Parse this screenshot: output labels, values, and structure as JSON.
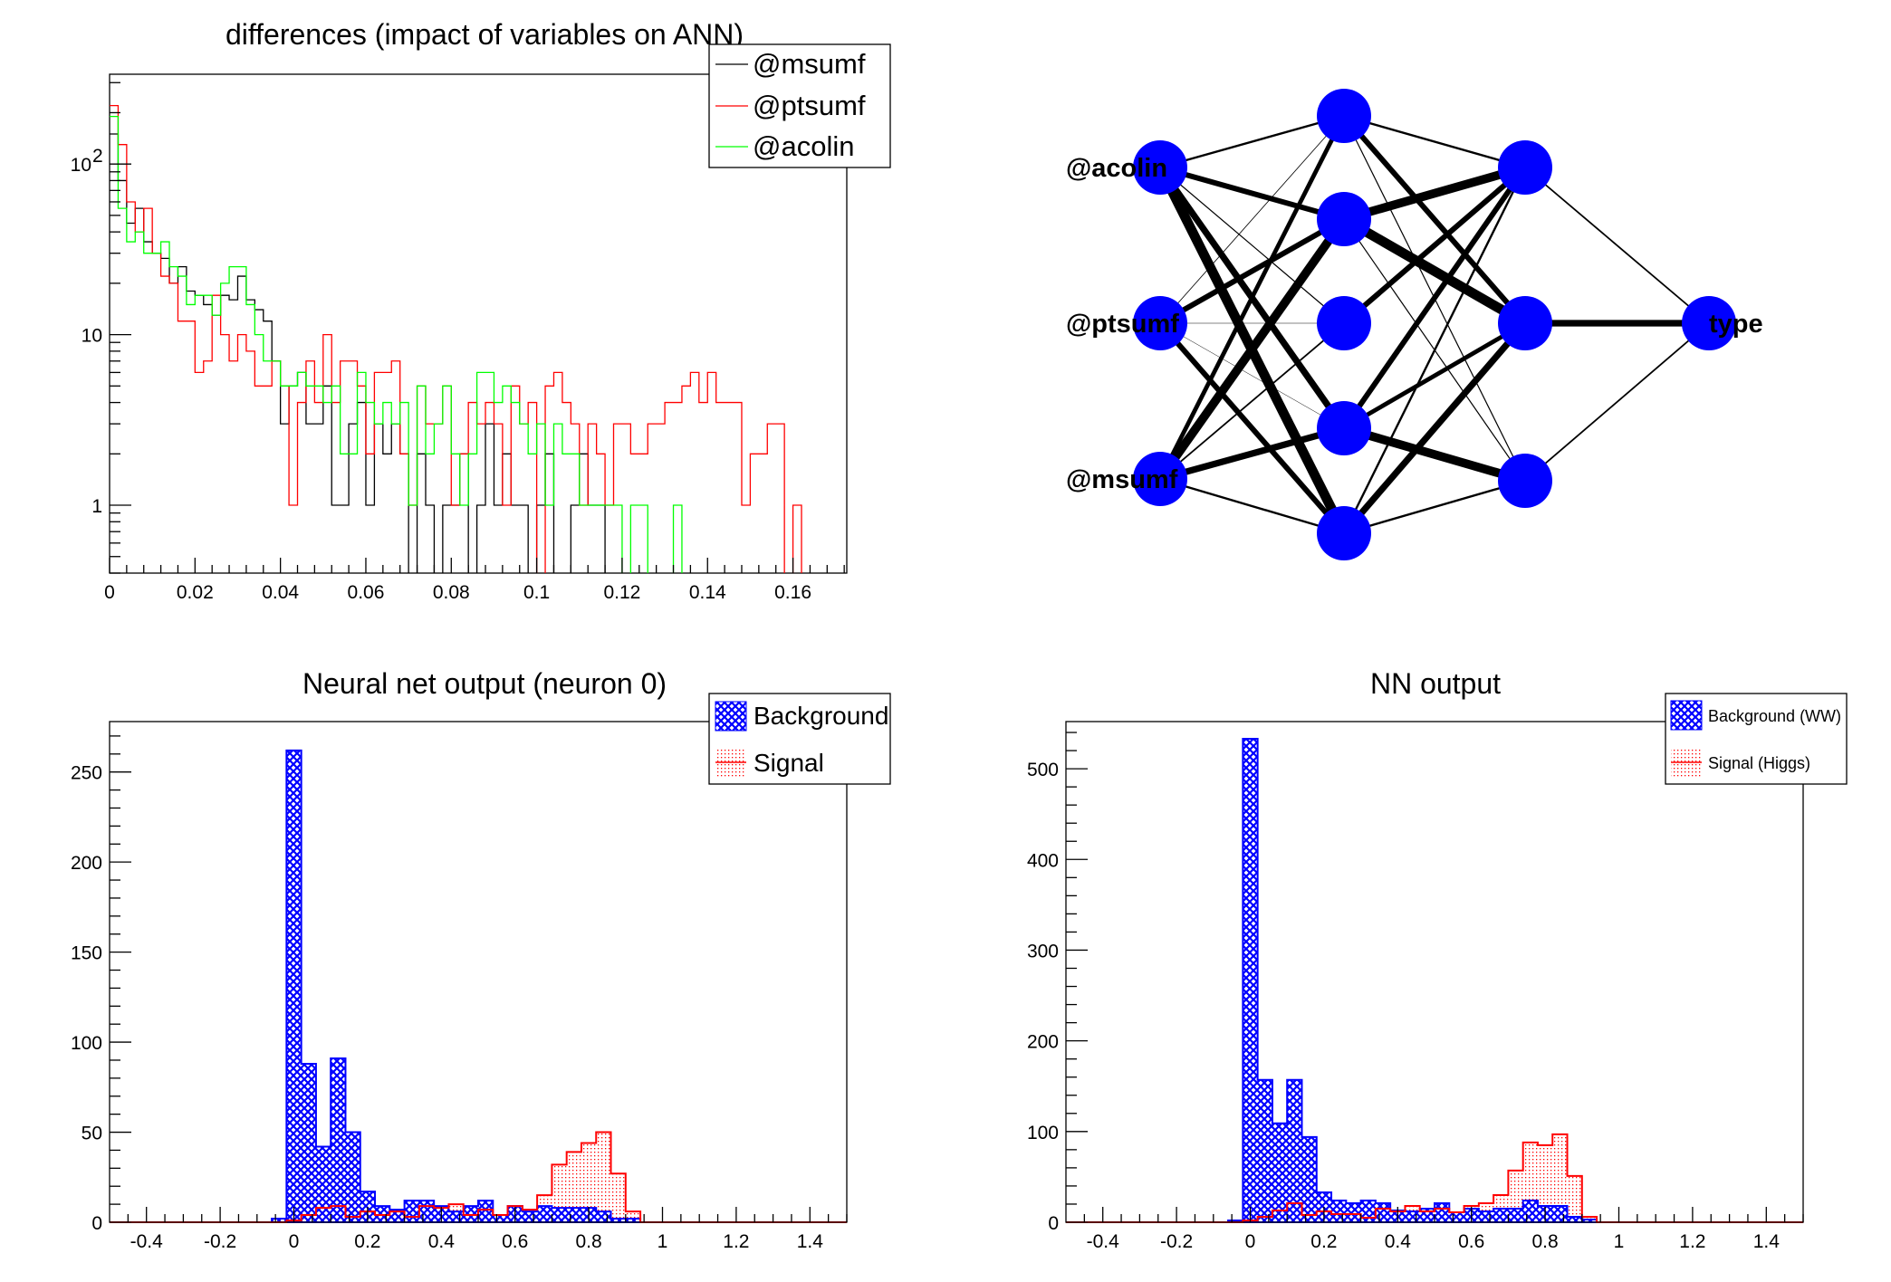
{
  "chart_data": [
    {
      "type": "line",
      "title": "differences (impact of variables on ANN)",
      "xlabel": "",
      "ylabel": "",
      "xlim": [
        0,
        0.1726
      ],
      "ylim": [
        0.4,
        336
      ],
      "yscale": "log",
      "bin_width": 0.002,
      "x_ticks": [
        "0",
        "0.02",
        "0.04",
        "0.06",
        "0.08",
        "0.1",
        "0.12",
        "0.14",
        "0.16"
      ],
      "x_tick_values": [
        0,
        0.02,
        0.04,
        0.06,
        0.08,
        0.1,
        0.12,
        0.14,
        0.16
      ],
      "y_ticks": [
        "1",
        "10",
        "10"
      ],
      "y_tick_exp": [
        "",
        "",
        "2"
      ],
      "y_tick_values": [
        1,
        10,
        100
      ],
      "legend_position": "top-right",
      "series": [
        {
          "name": "@msumf",
          "color": "#000000",
          "values": [
            150,
            80,
            45,
            55,
            35,
            30,
            28,
            20,
            25,
            18,
            17,
            15,
            13,
            17,
            16,
            22,
            16,
            14,
            12,
            7,
            3,
            5,
            6,
            3,
            3,
            5,
            1,
            1,
            3,
            4,
            1,
            3,
            2,
            3,
            2,
            0,
            2,
            1,
            0,
            1,
            1,
            2,
            0,
            1,
            3,
            1,
            2,
            1,
            1,
            0,
            1,
            2,
            0,
            0,
            1,
            2,
            1,
            1,
            0,
            0
          ]
        },
        {
          "name": "@ptsumf",
          "color": "#ff0000",
          "values": [
            220,
            130,
            60,
            40,
            55,
            30,
            22,
            20,
            12,
            12,
            6,
            7,
            17,
            10,
            7,
            10,
            8,
            5,
            5,
            7,
            5,
            1,
            4,
            7,
            4,
            10,
            4,
            7,
            7,
            5,
            2,
            6,
            6,
            7,
            2,
            1,
            5,
            3,
            3,
            5,
            1,
            2,
            4,
            3,
            4,
            3,
            1,
            5,
            3,
            4,
            0,
            5,
            6,
            4,
            3,
            1,
            3,
            2,
            1,
            3,
            3,
            2,
            2,
            3,
            3,
            4,
            4,
            5,
            6,
            4,
            6,
            4,
            4,
            4,
            1,
            2,
            2,
            3,
            3,
            0,
            1,
            0
          ]
        },
        {
          "name": "@acolin",
          "color": "#00ff00",
          "values": [
            190,
            55,
            35,
            40,
            30,
            30,
            35,
            25,
            22,
            15,
            17,
            17,
            13,
            20,
            25,
            25,
            15,
            10,
            7,
            7,
            5,
            5,
            6,
            5,
            5,
            4,
            5,
            2,
            2,
            6,
            4,
            3,
            4,
            3,
            4,
            1,
            5,
            2,
            3,
            5,
            2,
            1,
            2,
            6,
            6,
            4,
            5,
            4,
            3,
            2,
            3,
            1,
            3,
            2,
            2,
            1,
            1,
            1,
            1,
            1,
            0,
            1,
            1,
            0,
            0,
            0,
            1,
            0
          ]
        }
      ]
    },
    {
      "type": "diagram",
      "inputs": [
        "@acolin",
        "@ptsumf",
        "@msumf"
      ],
      "hidden1_count": 5,
      "hidden2_count": 3,
      "output": "type",
      "weights_in_h1": [
        [
          2,
          5,
          1,
          6,
          9
        ],
        [
          0.7,
          5,
          0.4,
          0.4,
          5
        ],
        [
          4,
          8,
          1.5,
          6,
          2
        ]
      ],
      "weights_h1_h2": [
        [
          2,
          5,
          1
        ],
        [
          8,
          9,
          1
        ],
        [
          5,
          0,
          0
        ],
        [
          5,
          4,
          8
        ],
        [
          2,
          6,
          2
        ]
      ],
      "weights_h2_out": [
        1.5,
        6,
        1.5
      ],
      "node_color": "#0000ff"
    },
    {
      "type": "bar",
      "title": "Neural net output (neuron 0)",
      "xlim": [
        -0.5,
        1.5
      ],
      "ylim": [
        0,
        278
      ],
      "bin_start": -0.06,
      "bin_width": 0.04,
      "x_ticks": [
        "-0.4",
        "-0.2",
        "0",
        "0.2",
        "0.4",
        "0.6",
        "0.8",
        "1",
        "1.2",
        "1.4"
      ],
      "x_tick_values": [
        -0.4,
        -0.2,
        0,
        0.2,
        0.4,
        0.6,
        0.8,
        1,
        1.2,
        1.4
      ],
      "y_ticks": [
        "0",
        "50",
        "100",
        "150",
        "200",
        "250"
      ],
      "y_tick_values": [
        0,
        50,
        100,
        150,
        200,
        250
      ],
      "y_minor_step": 10,
      "legend_position": "top-right",
      "series": [
        {
          "name": "Background",
          "color": "#0000ff",
          "values": [
            2,
            262,
            88,
            42,
            91,
            50,
            17,
            9,
            7,
            12,
            12,
            9,
            6,
            9,
            12,
            4,
            9,
            6,
            9,
            8,
            8,
            8,
            6,
            2,
            2
          ]
        },
        {
          "name": "Signal",
          "color": "#ff0000",
          "values": [
            0,
            1,
            4,
            8,
            9,
            3,
            6,
            4,
            6,
            3,
            9,
            8,
            10,
            4,
            7,
            4,
            9,
            7,
            15,
            32,
            39,
            44,
            50,
            27,
            6
          ]
        }
      ]
    },
    {
      "type": "bar",
      "title": "NN output",
      "xlim": [
        -0.5,
        1.5
      ],
      "ylim": [
        0,
        552
      ],
      "bin_start": -0.06,
      "bin_width": 0.04,
      "x_ticks": [
        "-0.4",
        "-0.2",
        "0",
        "0.2",
        "0.4",
        "0.6",
        "0.8",
        "1",
        "1.2",
        "1.4"
      ],
      "x_tick_values": [
        -0.4,
        -0.2,
        0,
        0.2,
        0.4,
        0.6,
        0.8,
        1,
        1.2,
        1.4
      ],
      "y_ticks": [
        "0",
        "100",
        "200",
        "300",
        "400",
        "500"
      ],
      "y_tick_values": [
        0,
        100,
        200,
        300,
        400,
        500
      ],
      "y_minor_step": 20,
      "legend_position": "top-right",
      "series": [
        {
          "name": "Background (WW)",
          "color": "#0000ff",
          "values": [
            2,
            533,
            157,
            109,
            157,
            94,
            33,
            24,
            21,
            24,
            21,
            13,
            12,
            15,
            21,
            11,
            15,
            12,
            15,
            15,
            24,
            18,
            18,
            6,
            3
          ]
        },
        {
          "name": "Signal (Higgs)",
          "color": "#ff0000",
          "values": [
            0,
            2,
            6,
            13,
            21,
            8,
            12,
            9,
            9,
            5,
            15,
            12,
            18,
            12,
            15,
            11,
            18,
            21,
            30,
            57,
            88,
            85,
            97,
            51,
            6
          ]
        }
      ]
    }
  ]
}
